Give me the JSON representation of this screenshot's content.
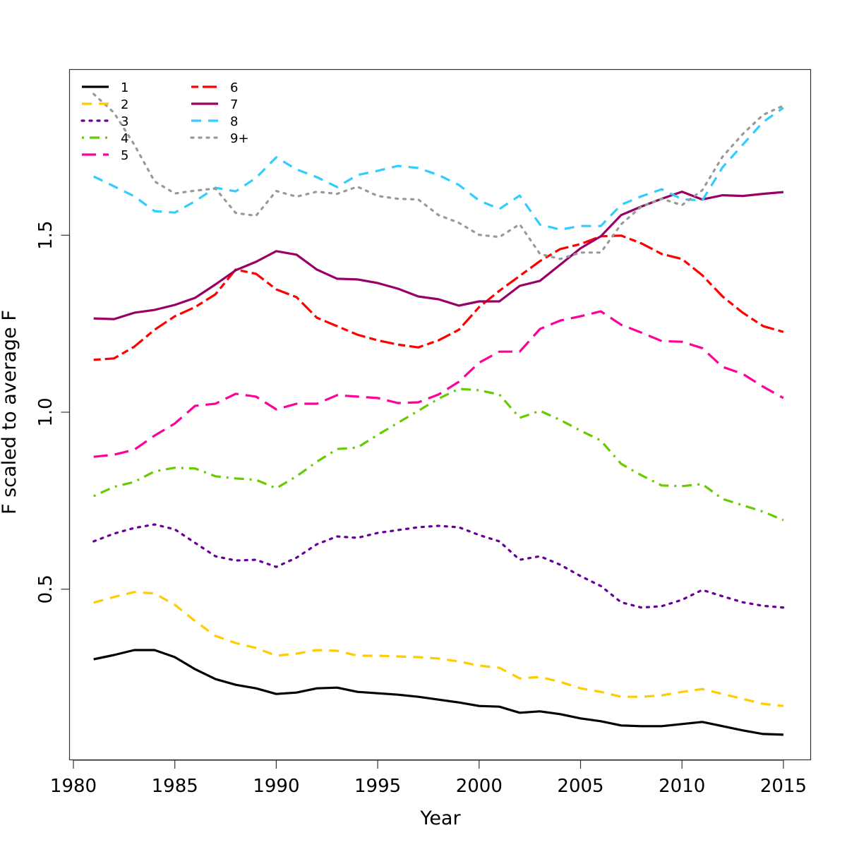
{
  "chart_data": {
    "type": "line",
    "title": "",
    "xlabel": "Year",
    "ylabel": "F scaled to average F",
    "xlim": [
      1980,
      2016
    ],
    "ylim": [
      0.0,
      1.95
    ],
    "x_ticks": [
      1980,
      1985,
      1990,
      1995,
      2000,
      2005,
      2010,
      2015
    ],
    "x_tick_labels": [
      "1980",
      "1985",
      "1990",
      "1995",
      "2000",
      "2005",
      "2010",
      "2015"
    ],
    "y_ticks": [
      0.5,
      1.0,
      1.5
    ],
    "y_tick_labels": [
      "0.5",
      "1.0",
      "1.5"
    ],
    "grid": false,
    "legend_position": "top-left",
    "legend_columns": 2,
    "x": [
      1981,
      1982,
      1983,
      1984,
      1985,
      1986,
      1987,
      1988,
      1989,
      1990,
      1991,
      1992,
      1993,
      1994,
      1995,
      1996,
      1997,
      1998,
      1999,
      2000,
      2001,
      2002,
      2003,
      2004,
      2005,
      2006,
      2007,
      2008,
      2009,
      2010,
      2011,
      2012,
      2013,
      2014,
      2015
    ],
    "series": [
      {
        "name": "1",
        "color": "#000000",
        "dash": "solid",
        "values": [
          0.302,
          0.314,
          0.328,
          0.328,
          0.308,
          0.274,
          0.246,
          0.23,
          0.22,
          0.204,
          0.208,
          0.22,
          0.222,
          0.21,
          0.206,
          0.202,
          0.196,
          0.188,
          0.18,
          0.17,
          0.168,
          0.151,
          0.155,
          0.147,
          0.135,
          0.127,
          0.115,
          0.113,
          0.113,
          0.119,
          0.125,
          0.113,
          0.101,
          0.091,
          0.089
        ]
      },
      {
        "name": "2",
        "color": "#FFCC00",
        "dash": "dashed",
        "values": [
          0.462,
          0.478,
          0.492,
          0.488,
          0.456,
          0.41,
          0.368,
          0.348,
          0.334,
          0.312,
          0.318,
          0.328,
          0.326,
          0.312,
          0.312,
          0.31,
          0.308,
          0.304,
          0.296,
          0.284,
          0.278,
          0.248,
          0.252,
          0.238,
          0.22,
          0.21,
          0.196,
          0.196,
          0.2,
          0.21,
          0.218,
          0.204,
          0.19,
          0.176,
          0.17
        ]
      },
      {
        "name": "3",
        "color": "#660099",
        "dash": "dotted",
        "values": [
          0.635,
          0.657,
          0.673,
          0.683,
          0.669,
          0.631,
          0.593,
          0.581,
          0.583,
          0.563,
          0.589,
          0.627,
          0.649,
          0.645,
          0.659,
          0.667,
          0.675,
          0.679,
          0.675,
          0.653,
          0.635,
          0.583,
          0.593,
          0.569,
          0.537,
          0.509,
          0.463,
          0.448,
          0.452,
          0.47,
          0.498,
          0.48,
          0.463,
          0.453,
          0.448
        ]
      },
      {
        "name": "4",
        "color": "#66CC00",
        "dash": "dotdash",
        "values": [
          0.763,
          0.789,
          0.803,
          0.833,
          0.843,
          0.841,
          0.819,
          0.813,
          0.809,
          0.785,
          0.819,
          0.86,
          0.896,
          0.9,
          0.936,
          0.97,
          1.004,
          1.038,
          1.066,
          1.062,
          1.05,
          0.984,
          1.004,
          0.978,
          0.948,
          0.92,
          0.854,
          0.822,
          0.793,
          0.791,
          0.797,
          0.755,
          0.737,
          0.719,
          0.695
        ]
      },
      {
        "name": "5",
        "color": "#FF0099",
        "dash": "longdash",
        "values": [
          0.874,
          0.88,
          0.894,
          0.934,
          0.968,
          1.018,
          1.024,
          1.052,
          1.044,
          1.008,
          1.024,
          1.024,
          1.048,
          1.044,
          1.04,
          1.026,
          1.028,
          1.05,
          1.086,
          1.14,
          1.171,
          1.171,
          1.235,
          1.259,
          1.271,
          1.285,
          1.247,
          1.225,
          1.201,
          1.199,
          1.181,
          1.128,
          1.108,
          1.072,
          1.04
        ]
      },
      {
        "name": "6",
        "color": "#FF0000",
        "dash": "twodash",
        "values": [
          1.148,
          1.152,
          1.185,
          1.233,
          1.271,
          1.297,
          1.333,
          1.403,
          1.391,
          1.347,
          1.325,
          1.267,
          1.243,
          1.219,
          1.203,
          1.191,
          1.183,
          1.203,
          1.233,
          1.297,
          1.343,
          1.385,
          1.427,
          1.461,
          1.475,
          1.497,
          1.499,
          1.477,
          1.447,
          1.433,
          1.387,
          1.327,
          1.281,
          1.243,
          1.227
        ]
      },
      {
        "name": "7",
        "color": "#990066",
        "dash": "solid",
        "values": [
          1.265,
          1.263,
          1.281,
          1.289,
          1.303,
          1.323,
          1.361,
          1.401,
          1.425,
          1.455,
          1.445,
          1.403,
          1.377,
          1.375,
          1.365,
          1.349,
          1.327,
          1.319,
          1.301,
          1.313,
          1.313,
          1.357,
          1.371,
          1.417,
          1.463,
          1.497,
          1.557,
          1.581,
          1.603,
          1.623,
          1.601,
          1.613,
          1.611,
          1.617,
          1.622
        ]
      },
      {
        "name": "8",
        "color": "#33CCFF",
        "dash": "dashed",
        "values": [
          1.666,
          1.638,
          1.61,
          1.568,
          1.564,
          1.596,
          1.634,
          1.624,
          1.662,
          1.72,
          1.686,
          1.664,
          1.636,
          1.67,
          1.682,
          1.696,
          1.69,
          1.67,
          1.642,
          1.598,
          1.574,
          1.612,
          1.53,
          1.516,
          1.526,
          1.526,
          1.586,
          1.61,
          1.63,
          1.602,
          1.598,
          1.692,
          1.756,
          1.82,
          1.86
        ]
      },
      {
        "name": "9+",
        "color": "#999999",
        "dash": "dotted",
        "values": [
          1.899,
          1.846,
          1.756,
          1.652,
          1.618,
          1.626,
          1.632,
          1.563,
          1.555,
          1.625,
          1.609,
          1.623,
          1.617,
          1.637,
          1.611,
          1.603,
          1.601,
          1.557,
          1.535,
          1.501,
          1.495,
          1.531,
          1.447,
          1.433,
          1.451,
          1.451,
          1.531,
          1.581,
          1.603,
          1.585,
          1.627,
          1.722,
          1.786,
          1.84,
          1.866
        ]
      }
    ]
  }
}
